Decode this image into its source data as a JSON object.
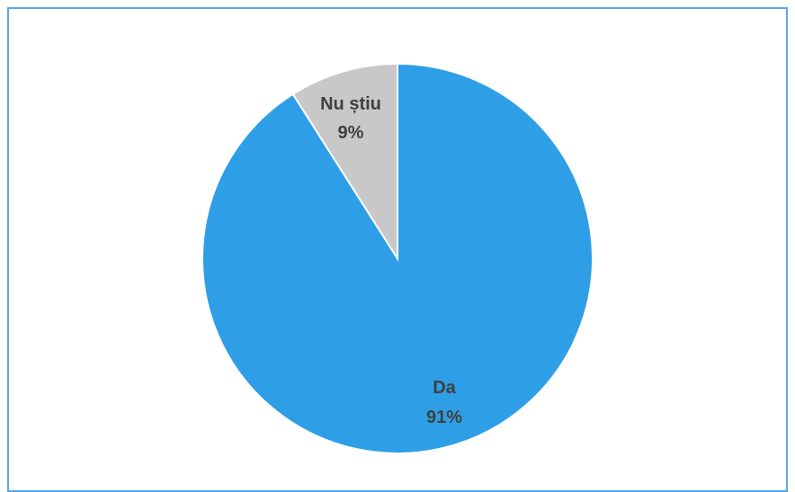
{
  "chart_data": {
    "type": "pie",
    "slices": [
      {
        "label": "Da",
        "value": 91,
        "display": "91%",
        "color": "#2e9fe6"
      },
      {
        "label": "Nu știu",
        "value": 9,
        "display": "9%",
        "color": "#c8c8c8"
      }
    ]
  }
}
